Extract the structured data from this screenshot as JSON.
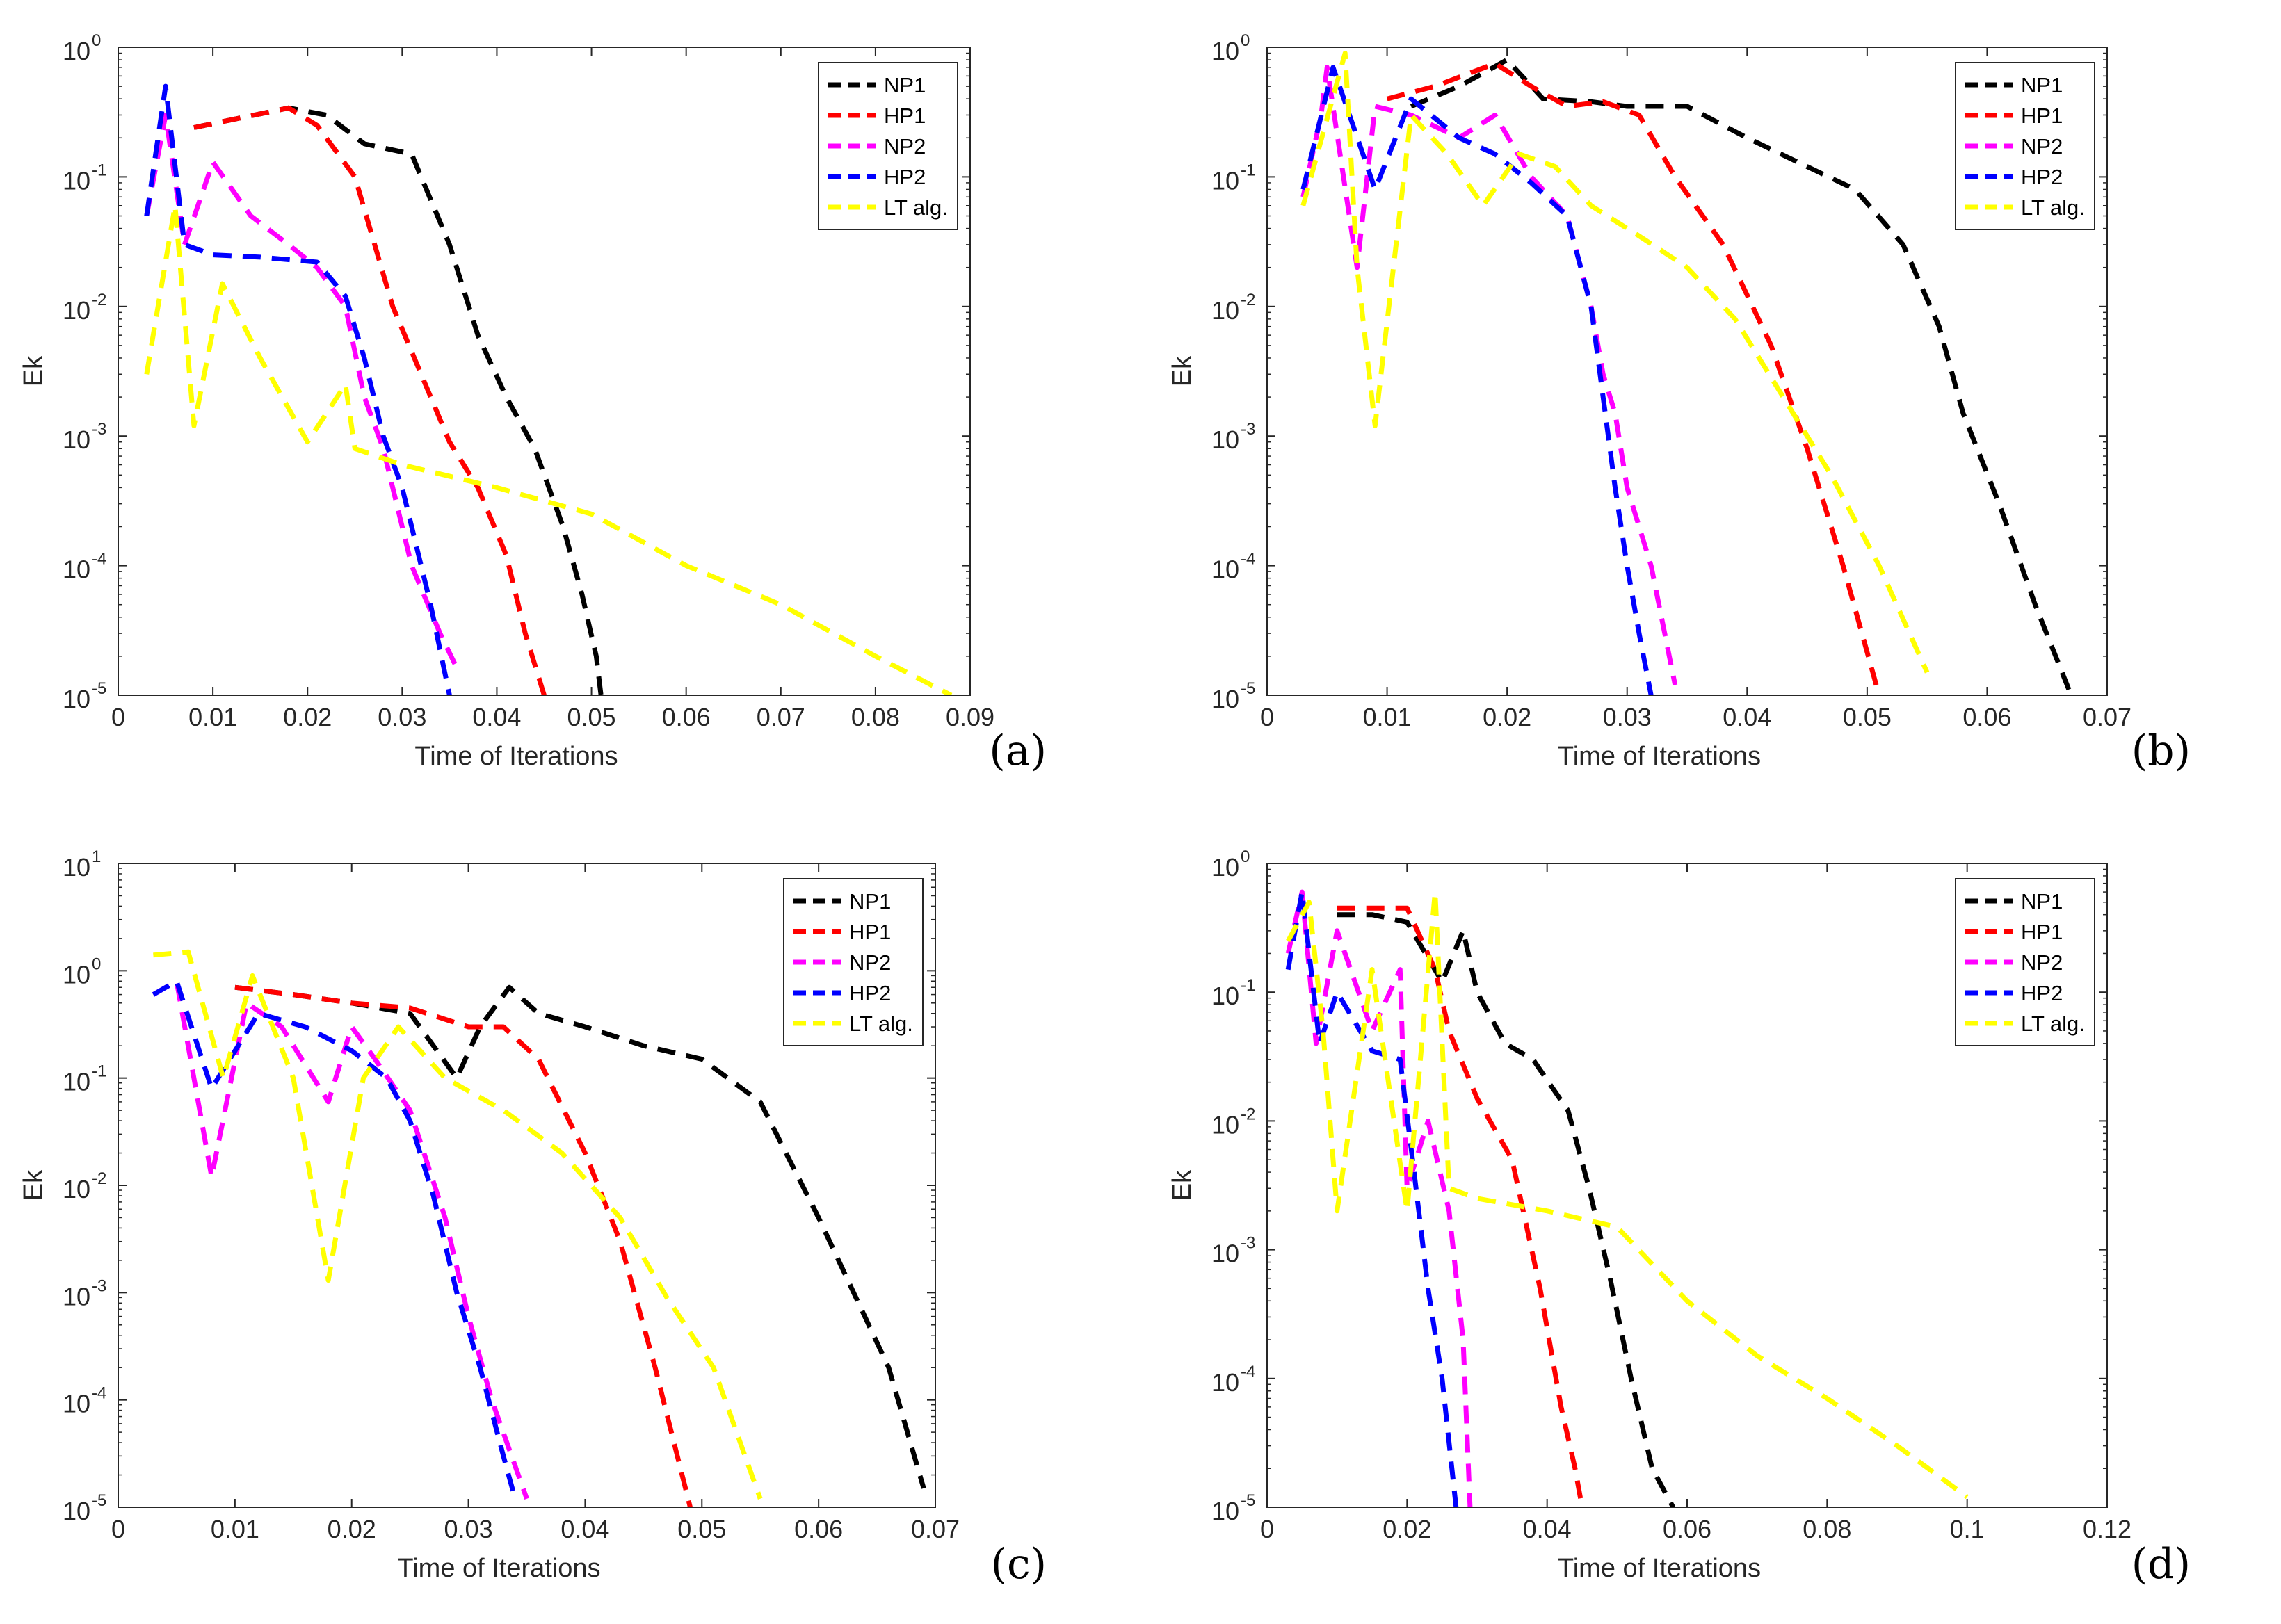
{
  "chart_data": [
    {
      "type": "line",
      "panel_label": "(a)",
      "xlabel": "Time of Iterations",
      "ylabel": "Ek",
      "xlim": [
        0,
        0.09
      ],
      "x_ticks": [
        0,
        0.01,
        0.02,
        0.03,
        0.04,
        0.05,
        0.06,
        0.07,
        0.08,
        0.09
      ],
      "x_tick_labels": [
        "0",
        "0.01",
        "0.02",
        "0.03",
        "0.04",
        "0.05",
        "0.06",
        "0.07",
        "0.08",
        "0.09"
      ],
      "ylim_exp": [
        -5,
        0
      ],
      "y_tick_labels": [
        "10",
        "10",
        "10",
        "10",
        "10",
        "10"
      ],
      "y_tick_exponents": [
        "-5",
        "-4",
        "-3",
        "-2",
        "-1",
        "0"
      ],
      "legend_position": "top-right",
      "series": [
        {
          "name": "NP1",
          "color": "#000000",
          "style": "dashed",
          "x": [
            0.008,
            0.018,
            0.022,
            0.026,
            0.031,
            0.035,
            0.038,
            0.041,
            0.044,
            0.047,
            0.049,
            0.0505,
            0.051
          ],
          "y": [
            0.24,
            0.34,
            0.3,
            0.18,
            0.15,
            0.03,
            0.006,
            0.002,
            0.0008,
            0.0002,
            6e-05,
            2e-05,
            1e-05
          ]
        },
        {
          "name": "HP1",
          "color": "#ff0000",
          "style": "dashed",
          "x": [
            0.008,
            0.018,
            0.021,
            0.025,
            0.029,
            0.032,
            0.035,
            0.038,
            0.041,
            0.043,
            0.045
          ],
          "y": [
            0.24,
            0.34,
            0.25,
            0.1,
            0.01,
            0.003,
            0.0009,
            0.0004,
            0.00012,
            3e-05,
            1e-05
          ]
        },
        {
          "name": "NP2",
          "color": "#ff00ff",
          "style": "dashed",
          "x": [
            0.003,
            0.005,
            0.007,
            0.01,
            0.014,
            0.018,
            0.021,
            0.024,
            0.026,
            0.028,
            0.031,
            0.034,
            0.036
          ],
          "y": [
            0.05,
            0.3,
            0.03,
            0.13,
            0.05,
            0.03,
            0.02,
            0.01,
            0.002,
            0.0008,
            0.0001,
            3e-05,
            1.5e-05
          ]
        },
        {
          "name": "HP2",
          "color": "#0000ff",
          "style": "dashed",
          "x": [
            0.003,
            0.005,
            0.007,
            0.01,
            0.015,
            0.021,
            0.024,
            0.026,
            0.028,
            0.03,
            0.033,
            0.035
          ],
          "y": [
            0.05,
            0.5,
            0.03,
            0.025,
            0.024,
            0.022,
            0.012,
            0.004,
            0.001,
            0.0004,
            5e-05,
            1e-05
          ]
        },
        {
          "name": "LT alg.",
          "color": "#ffff00",
          "style": "dashed",
          "x": [
            0.003,
            0.006,
            0.008,
            0.011,
            0.015,
            0.02,
            0.024,
            0.025,
            0.03,
            0.04,
            0.05,
            0.06,
            0.07,
            0.08,
            0.088
          ],
          "y": [
            0.003,
            0.06,
            0.0012,
            0.015,
            0.004,
            0.0009,
            0.0025,
            0.0008,
            0.0006,
            0.0004,
            0.00025,
            0.0001,
            5e-05,
            2e-05,
            1e-05
          ]
        }
      ]
    },
    {
      "type": "line",
      "panel_label": "(b)",
      "xlabel": "Time of Iterations",
      "ylabel": "Ek",
      "xlim": [
        0,
        0.07
      ],
      "x_ticks": [
        0,
        0.01,
        0.02,
        0.03,
        0.04,
        0.05,
        0.06,
        0.07
      ],
      "x_tick_labels": [
        "0",
        "0.01",
        "0.02",
        "0.03",
        "0.04",
        "0.05",
        "0.06",
        "0.07"
      ],
      "ylim_exp": [
        -5,
        0
      ],
      "y_tick_labels": [
        "10",
        "10",
        "10",
        "10",
        "10",
        "10"
      ],
      "y_tick_exponents": [
        "-5",
        "-4",
        "-3",
        "-2",
        "-1",
        "0"
      ],
      "legend_position": "top-right",
      "series": [
        {
          "name": "NP1",
          "color": "#000000",
          "style": "dashed",
          "x": [
            0.012,
            0.016,
            0.02,
            0.023,
            0.027,
            0.03,
            0.035,
            0.04,
            0.045,
            0.049,
            0.053,
            0.056,
            0.058,
            0.061,
            0.064,
            0.067
          ],
          "y": [
            0.35,
            0.5,
            0.8,
            0.4,
            0.38,
            0.35,
            0.35,
            0.2,
            0.12,
            0.08,
            0.03,
            0.007,
            0.0015,
            0.0003,
            5e-05,
            1e-05
          ]
        },
        {
          "name": "HP1",
          "color": "#ff0000",
          "style": "dashed",
          "x": [
            0.01,
            0.014,
            0.019,
            0.022,
            0.025,
            0.028,
            0.031,
            0.034,
            0.038,
            0.042,
            0.045,
            0.048,
            0.051
          ],
          "y": [
            0.4,
            0.5,
            0.75,
            0.5,
            0.35,
            0.38,
            0.3,
            0.1,
            0.03,
            0.005,
            0.0008,
            0.0001,
            1e-05
          ]
        },
        {
          "name": "NP2",
          "color": "#ff00ff",
          "style": "dashed",
          "x": [
            0.003,
            0.0045,
            0.005,
            0.0075,
            0.009,
            0.012,
            0.016,
            0.019,
            0.022,
            0.025,
            0.027,
            0.028,
            0.029,
            0.03,
            0.032,
            0.034
          ],
          "y": [
            0.07,
            0.3,
            0.7,
            0.02,
            0.35,
            0.3,
            0.2,
            0.3,
            0.1,
            0.05,
            0.01,
            0.003,
            0.0015,
            0.0004,
            0.0001,
            1.2e-05
          ]
        },
        {
          "name": "HP2",
          "color": "#0000ff",
          "style": "dashed",
          "x": [
            0.003,
            0.0055,
            0.009,
            0.012,
            0.016,
            0.019,
            0.022,
            0.025,
            0.027,
            0.028,
            0.029,
            0.03,
            0.031,
            0.032
          ],
          "y": [
            0.08,
            0.7,
            0.08,
            0.4,
            0.2,
            0.15,
            0.09,
            0.05,
            0.01,
            0.002,
            0.0004,
            0.0001,
            3e-05,
            1e-05
          ]
        },
        {
          "name": "LT alg.",
          "color": "#ffff00",
          "style": "dashed",
          "x": [
            0.003,
            0.0065,
            0.0075,
            0.009,
            0.012,
            0.015,
            0.018,
            0.021,
            0.024,
            0.027,
            0.031,
            0.035,
            0.039,
            0.043,
            0.047,
            0.051,
            0.055
          ],
          "y": [
            0.06,
            0.9,
            0.02,
            0.0012,
            0.3,
            0.15,
            0.06,
            0.15,
            0.12,
            0.06,
            0.035,
            0.02,
            0.008,
            0.002,
            0.0005,
            0.0001,
            1.5e-05
          ]
        }
      ]
    },
    {
      "type": "line",
      "panel_label": "(c)",
      "xlabel": "Time of Iterations",
      "ylabel": "Ek",
      "xlim": [
        0,
        0.07
      ],
      "x_ticks": [
        0,
        0.01,
        0.02,
        0.03,
        0.04,
        0.05,
        0.06,
        0.07
      ],
      "x_tick_labels": [
        "0",
        "0.01",
        "0.02",
        "0.03",
        "0.04",
        "0.05",
        "0.06",
        "0.07"
      ],
      "ylim_exp": [
        -5,
        1
      ],
      "y_tick_labels": [
        "10",
        "10",
        "10",
        "10",
        "10",
        "10",
        "10"
      ],
      "y_tick_exponents": [
        "-5",
        "-4",
        "-3",
        "-2",
        "-1",
        "0",
        "1"
      ],
      "legend_position": "top-right",
      "series": [
        {
          "name": "NP1",
          "color": "#000000",
          "style": "dashed",
          "x": [
            0.01,
            0.015,
            0.02,
            0.025,
            0.029,
            0.031,
            0.0335,
            0.036,
            0.04,
            0.045,
            0.05,
            0.055,
            0.06,
            0.063,
            0.066,
            0.069
          ],
          "y": [
            0.7,
            0.6,
            0.5,
            0.4,
            0.1,
            0.3,
            0.7,
            0.4,
            0.3,
            0.2,
            0.15,
            0.06,
            0.005,
            0.001,
            0.0002,
            1.5e-05
          ]
        },
        {
          "name": "HP1",
          "color": "#ff0000",
          "style": "dashed",
          "x": [
            0.01,
            0.015,
            0.02,
            0.025,
            0.03,
            0.033,
            0.036,
            0.04,
            0.043,
            0.046,
            0.049
          ],
          "y": [
            0.7,
            0.6,
            0.5,
            0.45,
            0.3,
            0.3,
            0.15,
            0.02,
            0.003,
            0.0002,
            1e-05
          ]
        },
        {
          "name": "NP2",
          "color": "#ff00ff",
          "style": "dashed",
          "x": [
            0.003,
            0.005,
            0.008,
            0.011,
            0.014,
            0.018,
            0.02,
            0.022,
            0.025,
            0.028,
            0.03,
            0.032,
            0.035
          ],
          "y": [
            0.6,
            0.8,
            0.012,
            0.5,
            0.3,
            0.06,
            0.3,
            0.15,
            0.05,
            0.005,
            0.0006,
            0.0001,
            1.2e-05
          ]
        },
        {
          "name": "HP2",
          "color": "#0000ff",
          "style": "dashed",
          "x": [
            0.003,
            0.005,
            0.008,
            0.012,
            0.016,
            0.02,
            0.023,
            0.025,
            0.027,
            0.029,
            0.031,
            0.033,
            0.034
          ],
          "y": [
            0.6,
            0.8,
            0.08,
            0.4,
            0.3,
            0.18,
            0.1,
            0.04,
            0.008,
            0.001,
            0.0002,
            3e-05,
            1.2e-05
          ]
        },
        {
          "name": "LT alg.",
          "color": "#ffff00",
          "style": "dashed",
          "x": [
            0.003,
            0.006,
            0.009,
            0.0115,
            0.015,
            0.018,
            0.021,
            0.024,
            0.028,
            0.033,
            0.038,
            0.043,
            0.047,
            0.051,
            0.055
          ],
          "y": [
            1.4,
            1.5,
            0.1,
            0.9,
            0.1,
            0.0013,
            0.1,
            0.3,
            0.1,
            0.05,
            0.02,
            0.005,
            0.0009,
            0.0002,
            1.2e-05
          ]
        }
      ]
    },
    {
      "type": "line",
      "panel_label": "(d)",
      "xlabel": "Time of Iterations",
      "ylabel": "Ek",
      "xlim": [
        0,
        0.12
      ],
      "x_ticks": [
        0,
        0.02,
        0.04,
        0.06,
        0.08,
        0.1,
        0.12
      ],
      "x_tick_labels": [
        "0",
        "0.02",
        "0.04",
        "0.06",
        "0.08",
        "0.1",
        "0.12"
      ],
      "ylim_exp": [
        -5,
        0
      ],
      "y_tick_labels": [
        "10",
        "10",
        "10",
        "10",
        "10",
        "10"
      ],
      "y_tick_exponents": [
        "-5",
        "-4",
        "-3",
        "-2",
        "-1",
        "0"
      ],
      "legend_position": "top-right",
      "series": [
        {
          "name": "NP1",
          "color": "#000000",
          "style": "dashed",
          "x": [
            0.01,
            0.015,
            0.02,
            0.025,
            0.028,
            0.03,
            0.034,
            0.038,
            0.043,
            0.046,
            0.049,
            0.052,
            0.055,
            0.058
          ],
          "y": [
            0.4,
            0.4,
            0.35,
            0.12,
            0.3,
            0.1,
            0.04,
            0.03,
            0.012,
            0.003,
            0.0006,
            0.0001,
            2e-05,
            1e-05
          ]
        },
        {
          "name": "HP1",
          "color": "#ff0000",
          "style": "dashed",
          "x": [
            0.01,
            0.015,
            0.02,
            0.024,
            0.026,
            0.03,
            0.035,
            0.039,
            0.042,
            0.044,
            0.045
          ],
          "y": [
            0.45,
            0.45,
            0.45,
            0.15,
            0.05,
            0.015,
            0.005,
            0.0005,
            6e-05,
            2e-05,
            1e-05
          ]
        },
        {
          "name": "NP2",
          "color": "#ff00ff",
          "style": "dashed",
          "x": [
            0.003,
            0.005,
            0.007,
            0.01,
            0.015,
            0.019,
            0.02,
            0.023,
            0.026,
            0.028,
            0.029
          ],
          "y": [
            0.2,
            0.6,
            0.04,
            0.3,
            0.05,
            0.15,
            0.003,
            0.01,
            0.002,
            0.0002,
            1e-05
          ]
        },
        {
          "name": "HP2",
          "color": "#0000ff",
          "style": "dashed",
          "x": [
            0.003,
            0.005,
            0.0075,
            0.01,
            0.015,
            0.019,
            0.021,
            0.023,
            0.025,
            0.027
          ],
          "y": [
            0.15,
            0.6,
            0.04,
            0.1,
            0.035,
            0.03,
            0.004,
            0.0005,
            0.0001,
            1e-05
          ]
        },
        {
          "name": "LT alg.",
          "color": "#ffff00",
          "style": "dashed",
          "x": [
            0.003,
            0.006,
            0.008,
            0.01,
            0.015,
            0.02,
            0.024,
            0.026,
            0.03,
            0.04,
            0.05,
            0.06,
            0.07,
            0.08,
            0.09,
            0.1
          ],
          "y": [
            0.25,
            0.5,
            0.05,
            0.002,
            0.15,
            0.002,
            0.6,
            0.003,
            0.0025,
            0.002,
            0.0015,
            0.0004,
            0.00015,
            7e-05,
            3e-05,
            1.2e-05
          ]
        }
      ]
    }
  ]
}
